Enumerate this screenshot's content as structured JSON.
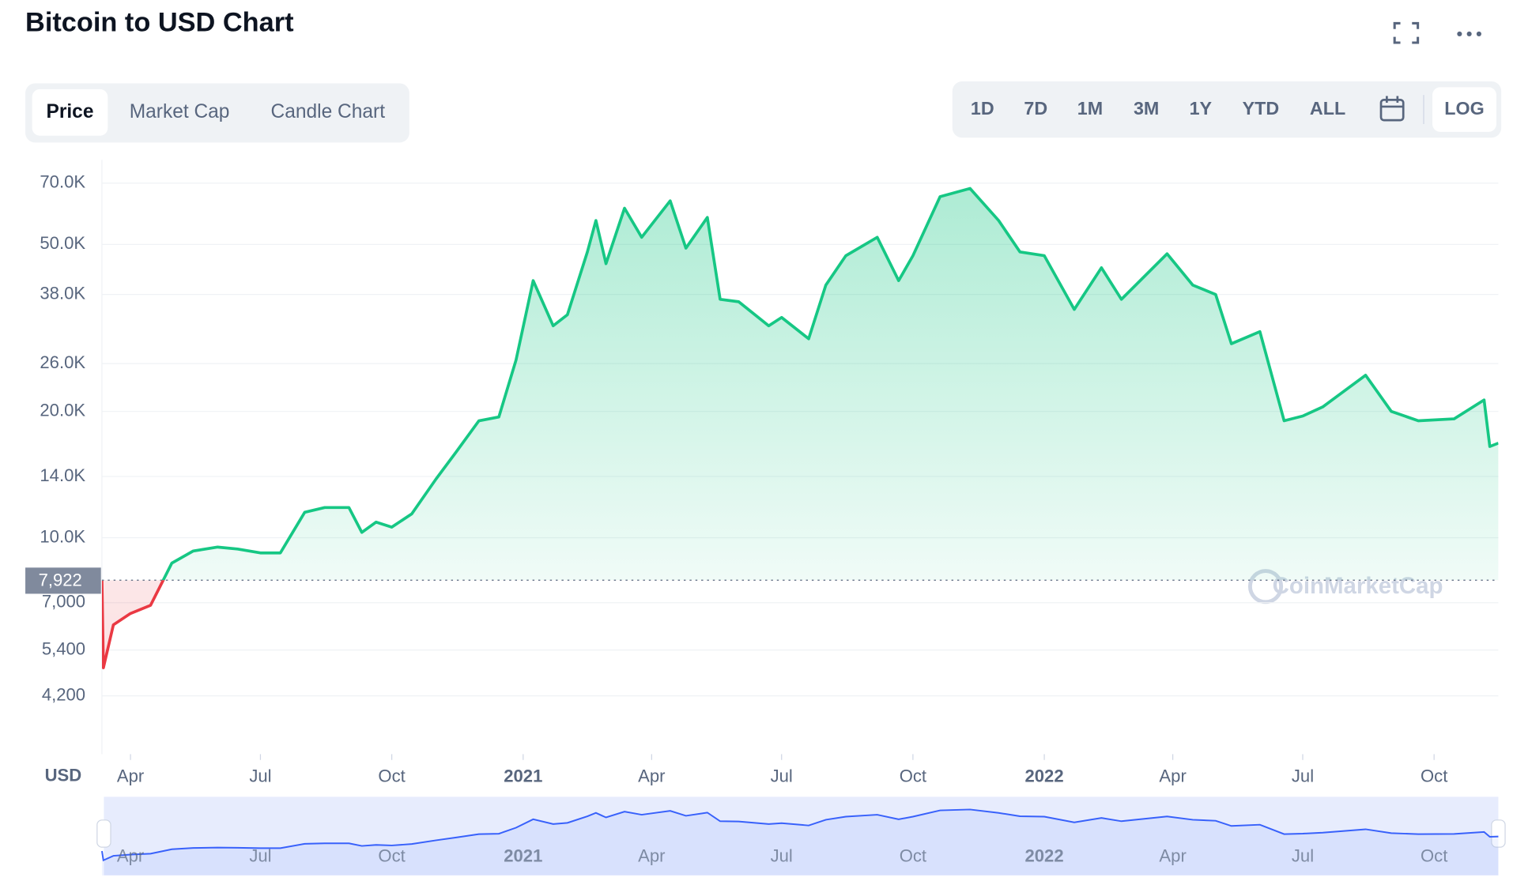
{
  "header": {
    "title": "Bitcoin to USD Chart"
  },
  "tabs": [
    "Price",
    "Market Cap",
    "Candle Chart"
  ],
  "active_tab": 0,
  "ranges": [
    "1D",
    "7D",
    "1M",
    "3M",
    "1Y",
    "YTD",
    "ALL"
  ],
  "log_button": "LOG",
  "watermark": "CoinMarketCap",
  "chart_data": {
    "type": "line",
    "ylabel": "USD",
    "log_scale": true,
    "grid": true,
    "color": "#16c784",
    "color_below": "#ea3943",
    "navigator_color": "#3861fb",
    "baseline": {
      "value": 7922,
      "label": "7,922"
    },
    "x": [
      "2020-03-12",
      "2020-03-13",
      "2020-03-20",
      "2020-04-01",
      "2020-04-15",
      "2020-04-30",
      "2020-05-15",
      "2020-06-01",
      "2020-06-15",
      "2020-07-01",
      "2020-07-15",
      "2020-08-01",
      "2020-08-15",
      "2020-09-01",
      "2020-09-10",
      "2020-09-20",
      "2020-10-01",
      "2020-10-15",
      "2020-11-01",
      "2020-11-15",
      "2020-12-01",
      "2020-12-15",
      "2020-12-27",
      "2021-01-08",
      "2021-01-22",
      "2021-02-01",
      "2021-02-15",
      "2021-02-21",
      "2021-02-28",
      "2021-03-13",
      "2021-03-25",
      "2021-04-14",
      "2021-04-25",
      "2021-05-10",
      "2021-05-19",
      "2021-06-01",
      "2021-06-22",
      "2021-07-01",
      "2021-07-20",
      "2021-08-01",
      "2021-08-15",
      "2021-09-06",
      "2021-09-21",
      "2021-10-01",
      "2021-10-20",
      "2021-11-10",
      "2021-11-30",
      "2021-12-15",
      "2022-01-01",
      "2022-01-22",
      "2022-02-10",
      "2022-02-24",
      "2022-03-28",
      "2022-04-15",
      "2022-05-01",
      "2022-05-12",
      "2022-06-01",
      "2022-06-18",
      "2022-07-01",
      "2022-07-15",
      "2022-08-14",
      "2022-09-01",
      "2022-09-20",
      "2022-10-15",
      "2022-11-05",
      "2022-11-09",
      "2022-11-15"
    ],
    "values": [
      7900,
      4900,
      6200,
      6600,
      6900,
      8700,
      9300,
      9500,
      9400,
      9200,
      9200,
      11500,
      11800,
      11800,
      10300,
      10900,
      10600,
      11400,
      13800,
      16000,
      19000,
      19400,
      26500,
      41000,
      32000,
      34000,
      48000,
      57000,
      45000,
      61000,
      52000,
      63500,
      49000,
      58000,
      37000,
      36500,
      32000,
      33500,
      29800,
      40000,
      47000,
      52000,
      41000,
      47000,
      65000,
      68000,
      57000,
      48000,
      47000,
      35000,
      44000,
      37000,
      47500,
      40000,
      38000,
      29000,
      31000,
      19000,
      19500,
      20500,
      24400,
      20000,
      19000,
      19200,
      21300,
      16500,
      16800
    ],
    "xlim": [
      "2020-03-12",
      "2022-11-15"
    ],
    "xticks": [
      {
        "value": "2020-04-01",
        "label": "Apr"
      },
      {
        "value": "2020-07-01",
        "label": "Jul"
      },
      {
        "value": "2020-10-01",
        "label": "Oct"
      },
      {
        "value": "2021-01-01",
        "label": "2021"
      },
      {
        "value": "2021-04-01",
        "label": "Apr"
      },
      {
        "value": "2021-07-01",
        "label": "Jul"
      },
      {
        "value": "2021-10-01",
        "label": "Oct"
      },
      {
        "value": "2022-01-01",
        "label": "2022"
      },
      {
        "value": "2022-04-01",
        "label": "Apr"
      },
      {
        "value": "2022-07-01",
        "label": "Jul"
      },
      {
        "value": "2022-10-01",
        "label": "Oct"
      }
    ],
    "ylim": [
      3050,
      79500
    ],
    "yticks": [
      {
        "value": 4200,
        "label": "4,200"
      },
      {
        "value": 5400,
        "label": "5,400"
      },
      {
        "value": 7000,
        "label": "7,000"
      },
      {
        "value": 10000,
        "label": "10.0K"
      },
      {
        "value": 14000,
        "label": "14.0K"
      },
      {
        "value": 20000,
        "label": "20.0K"
      },
      {
        "value": 26000,
        "label": "26.0K"
      },
      {
        "value": 38000,
        "label": "38.0K"
      },
      {
        "value": 50000,
        "label": "50.0K"
      },
      {
        "value": 70000,
        "label": "70.0K"
      }
    ]
  }
}
